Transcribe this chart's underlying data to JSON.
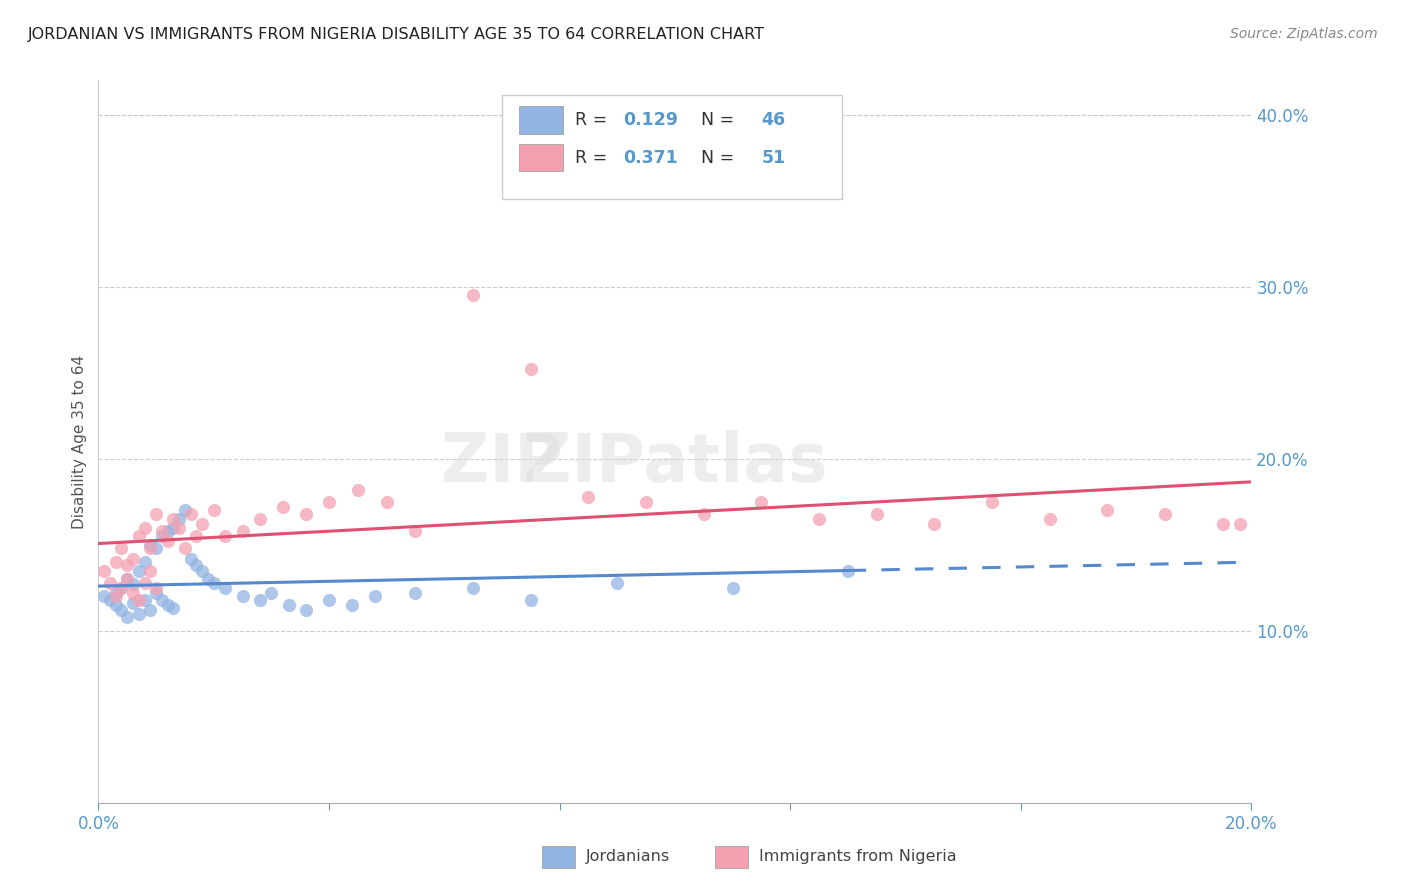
{
  "title": "JORDANIAN VS IMMIGRANTS FROM NIGERIA DISABILITY AGE 35 TO 64 CORRELATION CHART",
  "source": "Source: ZipAtlas.com",
  "ylabel": "Disability Age 35 to 64",
  "legend_label1": "Jordanians",
  "legend_label2": "Immigrants from Nigeria",
  "R1": 0.129,
  "N1": 46,
  "R2": 0.371,
  "N2": 51,
  "color1": "#92B4E3",
  "color2": "#F4A0B0",
  "trendline1_color": "#5588CC",
  "trendline2_color": "#E05070",
  "axis_label_color": "#5599CC",
  "text_dark": "#333333",
  "xmin": 0.0,
  "xmax": 0.2,
  "ymin": 0.0,
  "ymax": 0.42,
  "yticks": [
    0.1,
    0.2,
    0.3,
    0.4
  ],
  "xtick_show": [
    0.0,
    0.2
  ],
  "xtick_minor": [
    0.04,
    0.08,
    0.12,
    0.16
  ],
  "jordanians_x": [
    0.001,
    0.002,
    0.003,
    0.003,
    0.004,
    0.004,
    0.005,
    0.005,
    0.006,
    0.006,
    0.007,
    0.007,
    0.008,
    0.008,
    0.009,
    0.009,
    0.01,
    0.01,
    0.011,
    0.011,
    0.012,
    0.012,
    0.013,
    0.013,
    0.014,
    0.015,
    0.016,
    0.017,
    0.018,
    0.019,
    0.02,
    0.022,
    0.025,
    0.028,
    0.03,
    0.033,
    0.036,
    0.04,
    0.044,
    0.048,
    0.055,
    0.065,
    0.075,
    0.09,
    0.11,
    0.13
  ],
  "jordanians_y": [
    0.12,
    0.118,
    0.122,
    0.115,
    0.125,
    0.112,
    0.13,
    0.108,
    0.127,
    0.116,
    0.135,
    0.11,
    0.14,
    0.118,
    0.15,
    0.112,
    0.148,
    0.122,
    0.155,
    0.118,
    0.158,
    0.115,
    0.16,
    0.113,
    0.165,
    0.17,
    0.142,
    0.138,
    0.135,
    0.13,
    0.128,
    0.125,
    0.12,
    0.118,
    0.122,
    0.115,
    0.112,
    0.118,
    0.115,
    0.12,
    0.122,
    0.125,
    0.118,
    0.128,
    0.125,
    0.135
  ],
  "nigeria_x": [
    0.001,
    0.002,
    0.003,
    0.003,
    0.004,
    0.004,
    0.005,
    0.005,
    0.006,
    0.006,
    0.007,
    0.007,
    0.008,
    0.008,
    0.009,
    0.009,
    0.01,
    0.01,
    0.011,
    0.012,
    0.013,
    0.014,
    0.015,
    0.016,
    0.017,
    0.018,
    0.02,
    0.022,
    0.025,
    0.028,
    0.032,
    0.036,
    0.04,
    0.045,
    0.05,
    0.055,
    0.065,
    0.075,
    0.085,
    0.095,
    0.105,
    0.115,
    0.125,
    0.135,
    0.145,
    0.155,
    0.165,
    0.175,
    0.185,
    0.195,
    0.198
  ],
  "nigeria_y": [
    0.135,
    0.128,
    0.14,
    0.12,
    0.148,
    0.125,
    0.138,
    0.13,
    0.142,
    0.122,
    0.155,
    0.118,
    0.16,
    0.128,
    0.148,
    0.135,
    0.168,
    0.125,
    0.158,
    0.152,
    0.165,
    0.16,
    0.148,
    0.168,
    0.155,
    0.162,
    0.17,
    0.155,
    0.158,
    0.165,
    0.172,
    0.168,
    0.175,
    0.182,
    0.175,
    0.158,
    0.295,
    0.252,
    0.178,
    0.175,
    0.168,
    0.175,
    0.165,
    0.168,
    0.162,
    0.175,
    0.165,
    0.17,
    0.168,
    0.162,
    0.162
  ]
}
